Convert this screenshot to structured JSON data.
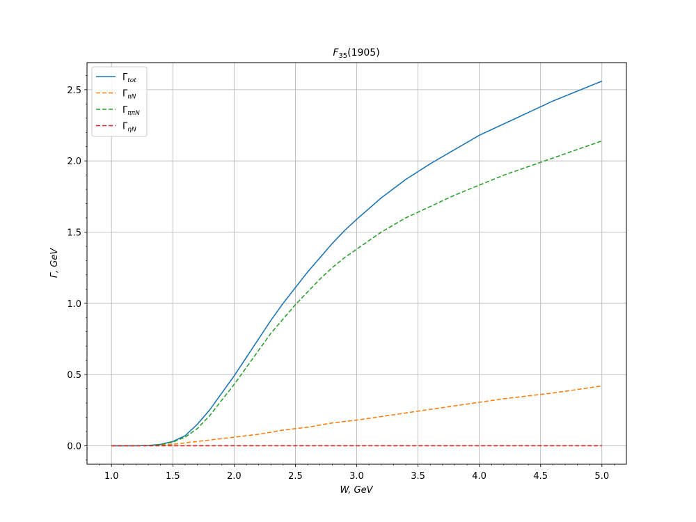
{
  "chart_data": {
    "type": "line",
    "title": "F35(1905)",
    "title_parts": {
      "main": "F",
      "sub": "35",
      "rest": "(1905)"
    },
    "xlabel": "W, GeV",
    "ylabel": "Γ, GeV",
    "xlim": [
      0.8,
      5.2
    ],
    "ylim": [
      -0.13,
      2.69
    ],
    "grid": true,
    "legend_position": "top-left",
    "x_ticks": [
      1.0,
      1.5,
      2.0,
      2.5,
      3.0,
      3.5,
      4.0,
      4.5,
      5.0
    ],
    "x_tick_labels": [
      "1.0",
      "1.5",
      "2.0",
      "2.5",
      "3.0",
      "3.5",
      "4.0",
      "4.5",
      "5.0"
    ],
    "y_ticks": [
      0.0,
      0.5,
      1.0,
      1.5,
      2.0,
      2.5
    ],
    "y_tick_labels": [
      "0.0",
      "0.5",
      "1.0",
      "1.5",
      "2.0",
      "2.5"
    ],
    "x": [
      1.0,
      1.2,
      1.3,
      1.4,
      1.5,
      1.6,
      1.7,
      1.8,
      1.9,
      2.0,
      2.1,
      2.2,
      2.3,
      2.4,
      2.5,
      2.6,
      2.7,
      2.8,
      2.9,
      3.0,
      3.2,
      3.4,
      3.6,
      3.8,
      4.0,
      4.2,
      4.4,
      4.6,
      4.8,
      5.0
    ],
    "series": [
      {
        "name": "Γtot",
        "name_base": "Γ",
        "name_sub": "tot",
        "color": "#1f77b4",
        "dashed": false,
        "values": [
          0.0,
          0.0,
          0.002,
          0.01,
          0.03,
          0.07,
          0.15,
          0.25,
          0.37,
          0.49,
          0.62,
          0.75,
          0.88,
          1.0,
          1.11,
          1.22,
          1.32,
          1.42,
          1.51,
          1.59,
          1.74,
          1.87,
          1.98,
          2.08,
          2.18,
          2.26,
          2.34,
          2.42,
          2.49,
          2.56
        ]
      },
      {
        "name": "ΓπN",
        "name_base": "Γ",
        "name_sub": "πN",
        "color": "#ff7f0e",
        "dashed": true,
        "values": [
          0.0,
          0.0,
          0.001,
          0.005,
          0.01,
          0.02,
          0.03,
          0.04,
          0.05,
          0.06,
          0.07,
          0.08,
          0.095,
          0.11,
          0.12,
          0.13,
          0.145,
          0.16,
          0.17,
          0.18,
          0.205,
          0.23,
          0.255,
          0.28,
          0.305,
          0.33,
          0.35,
          0.37,
          0.395,
          0.42
        ]
      },
      {
        "name": "ΓππN",
        "name_base": "Γ",
        "name_sub": "ππN",
        "color": "#2ca02c",
        "dashed": true,
        "values": [
          0.0,
          0.0,
          0.002,
          0.008,
          0.025,
          0.06,
          0.12,
          0.21,
          0.32,
          0.43,
          0.55,
          0.67,
          0.79,
          0.89,
          0.99,
          1.08,
          1.17,
          1.25,
          1.32,
          1.38,
          1.5,
          1.6,
          1.68,
          1.76,
          1.83,
          1.9,
          1.96,
          2.02,
          2.08,
          2.14
        ]
      },
      {
        "name": "ΓηN",
        "name_base": "Γ",
        "name_sub": "ηN",
        "color": "#d62728",
        "dashed": true,
        "values": [
          0.0,
          0.0,
          0.0,
          0.0,
          0.0,
          0.0,
          0.0,
          0.0,
          0.0,
          0.0,
          0.0,
          0.0,
          0.0,
          0.0,
          0.0,
          0.0,
          0.0,
          0.0,
          0.0,
          0.0,
          0.0,
          0.0,
          0.0,
          0.0,
          0.0,
          0.0,
          0.0,
          0.0,
          0.0,
          0.0
        ]
      }
    ]
  }
}
